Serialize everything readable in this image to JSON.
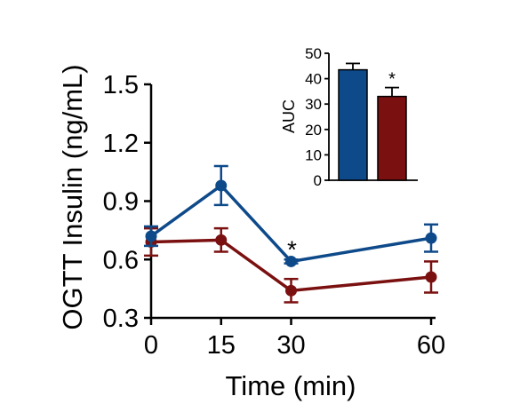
{
  "chart_data": [
    {
      "type": "line",
      "xlabel": "Time (min)",
      "ylabel": "OGTT Insulin (ng/mL)",
      "x": [
        0,
        15,
        30,
        60
      ],
      "xticks": [
        "0",
        "15",
        "30",
        "60"
      ],
      "ylim": [
        0.3,
        1.5
      ],
      "yticks": [
        "0.3",
        "0.6",
        "0.9",
        "1.2",
        "1.5"
      ],
      "grid": false,
      "colors": [
        "#0e4a8a",
        "#7b1010"
      ],
      "series": [
        {
          "values": [
            0.72,
            0.98,
            0.59,
            0.71
          ],
          "errors": [
            0.05,
            0.1,
            0.01,
            0.07
          ]
        },
        {
          "values": [
            0.69,
            0.7,
            0.44,
            0.51
          ],
          "errors": [
            0.07,
            0.06,
            0.06,
            0.08
          ]
        }
      ],
      "annotations": [
        {
          "x": 30,
          "text": "*"
        }
      ]
    },
    {
      "type": "bar",
      "ylabel": "AUC",
      "ylim": [
        0,
        50
      ],
      "yticks": [
        "0",
        "10",
        "20",
        "30",
        "40",
        "50"
      ],
      "colors": [
        "#0e4a8a",
        "#7b1010"
      ],
      "values": [
        43.5,
        33.0
      ],
      "errors": [
        2.5,
        3.5
      ],
      "annotations": [
        {
          "bar": 1,
          "text": "*"
        }
      ]
    }
  ]
}
